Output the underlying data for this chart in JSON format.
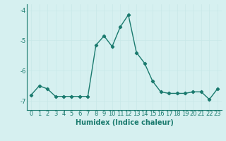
{
  "x": [
    0,
    1,
    2,
    3,
    4,
    5,
    6,
    7,
    8,
    9,
    10,
    11,
    12,
    13,
    14,
    15,
    16,
    17,
    18,
    19,
    20,
    21,
    22,
    23
  ],
  "y": [
    -6.8,
    -6.5,
    -6.6,
    -6.85,
    -6.85,
    -6.85,
    -6.85,
    -6.85,
    -5.15,
    -4.85,
    -5.2,
    -4.55,
    -4.15,
    -5.4,
    -5.75,
    -6.35,
    -6.7,
    -6.75,
    -6.75,
    -6.75,
    -6.7,
    -6.7,
    -6.95,
    -6.6
  ],
  "xlabel": "Humidex (Indice chaleur)",
  "xlim": [
    -0.5,
    23.5
  ],
  "ylim": [
    -7.3,
    -3.8
  ],
  "yticks": [
    -7,
    -6,
    -5,
    -4
  ],
  "xticks": [
    0,
    1,
    2,
    3,
    4,
    5,
    6,
    7,
    8,
    9,
    10,
    11,
    12,
    13,
    14,
    15,
    16,
    17,
    18,
    19,
    20,
    21,
    22,
    23
  ],
  "line_color": "#1a7a6e",
  "bg_color": "#d6f0f0",
  "grid_color": "#c8e8e8",
  "marker": "D",
  "marker_size": 2.2,
  "line_width": 1.0,
  "tick_fontsize": 6.0,
  "xlabel_fontsize": 7.0
}
